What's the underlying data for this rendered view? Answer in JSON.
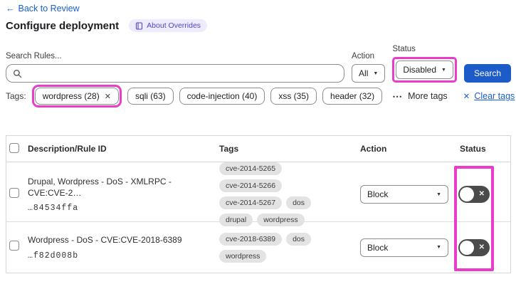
{
  "page": {
    "back": {
      "arrow": "←",
      "label": "Back to Review"
    },
    "title": "Configure deployment",
    "about_badge": "About Overrides"
  },
  "filters": {
    "search_label": "Search Rules...",
    "search_value": "",
    "action_label": "Action",
    "action_value": "All",
    "status_label": "Status",
    "status_value": "Disabled",
    "search_button": "Search"
  },
  "tags_bar": {
    "label": "Tags:",
    "selected_tag": {
      "label": "wordpress (28)",
      "remove_icon": "✕"
    },
    "tags": [
      "sqli (63)",
      "code-injection (40)",
      "xss (35)",
      "header (32)"
    ],
    "more_tags": {
      "icon": "⋯",
      "label": "More tags"
    },
    "clear_tags": {
      "icon": "✕",
      "label": "Clear tags"
    }
  },
  "table": {
    "headers": {
      "description": "Description/Rule ID",
      "tags": "Tags",
      "action": "Action",
      "status": "Status"
    },
    "rows": [
      {
        "description": "Drupal, Wordpress - DoS - XMLRPC - CVE:CVE-2…",
        "rule_id": "…84534ffa",
        "tags": [
          "cve-2014-5265",
          "cve-2014-5266",
          "cve-2014-5267",
          "dos",
          "drupal",
          "wordpress"
        ],
        "action": "Block",
        "status": "disabled"
      },
      {
        "description": "Wordpress - DoS - CVE:CVE-2018-6389",
        "rule_id": "…f82d008b",
        "tags": [
          "cve-2018-6389",
          "dos",
          "wordpress"
        ],
        "action": "Block",
        "status": "disabled"
      }
    ]
  },
  "icons": {
    "caret": "▼",
    "x": "✕"
  },
  "colors": {
    "annotation_highlight": "#e93ccb",
    "primary_button_blue": "#1d5bc9",
    "link_blue": "#1a5fd0",
    "badge_purple_text": "#5046c9",
    "badge_purple_bg": "#eeebfc",
    "toggle_gray": "#4b4b4b",
    "pill_gray": "#e3e3e3"
  }
}
